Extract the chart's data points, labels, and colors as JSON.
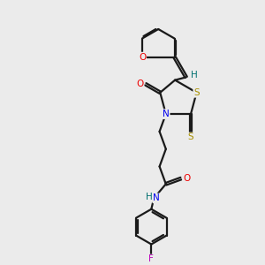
{
  "background_color": "#ebebeb",
  "bond_color": "#1a1a1a",
  "sulfur_color": "#a89000",
  "nitrogen_color": "#0000ee",
  "oxygen_color": "#ee0000",
  "fluorine_color": "#bb00bb",
  "hydrogen_color": "#007070",
  "bond_width": 1.6,
  "xlim": [
    0,
    10
  ],
  "ylim": [
    0,
    10
  ]
}
